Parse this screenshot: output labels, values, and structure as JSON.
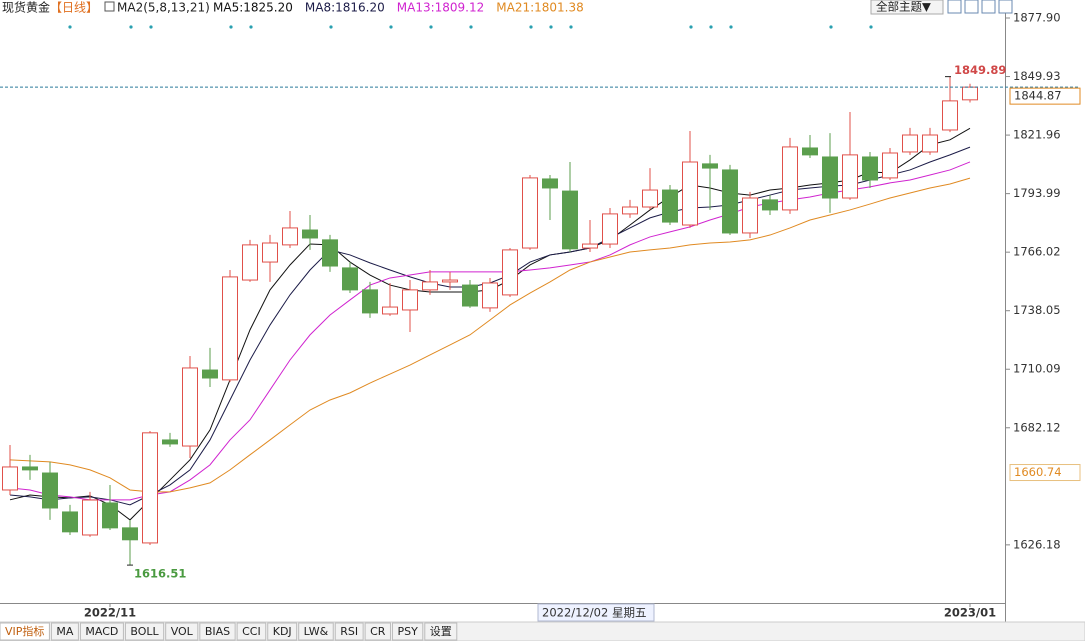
{
  "chart_data": {
    "type": "candlestick",
    "title": "现货黄金",
    "period": "【日线】",
    "indicator": "MA2(5,8,13,21)",
    "theme_button": "全部主题▼",
    "up_color": "#e0504a",
    "down_color": "#5b9e4d",
    "categories": [
      null,
      null,
      null,
      null,
      null,
      "2022/11",
      null,
      null,
      null,
      null,
      null,
      null,
      null,
      null,
      null,
      null,
      null,
      null,
      null,
      null,
      null,
      null,
      null,
      null,
      null,
      null,
      null,
      null,
      null,
      null,
      null,
      null,
      null,
      null,
      null,
      null,
      null,
      null,
      null,
      null,
      null,
      null,
      null,
      null,
      null,
      null,
      null,
      null,
      "2023/01"
    ],
    "open": [
      1652.4,
      1663.4,
      1660.5,
      1641.9,
      1630.9,
      1646.2,
      1634.3,
      1627.1,
      1676.3,
      1673.4,
      1709.7,
      1705.0,
      1752.7,
      1761.3,
      1769.5,
      1776.6,
      1771.9,
      1758.5,
      1748.0,
      1736.5,
      1738.4,
      1748.0,
      1751.8,
      1750.3,
      1739.4,
      1745.6,
      1768.0,
      1801.0,
      1795.2,
      1768.0,
      1769.9,
      1784.3,
      1787.6,
      1795.7,
      1779.0,
      1808.2,
      1805.3,
      1775.2,
      1791.0,
      1786.2,
      1815.8,
      1811.5,
      1791.9,
      1811.5,
      1801.5,
      1813.9,
      1813.9,
      1824.4,
      1838.8
    ],
    "high": [
      1673.9,
      1669.2,
      1665.8,
      1645.3,
      1651.5,
      1654.8,
      1638.1,
      1680.6,
      1679.7,
      1716.4,
      1720.3,
      1757.5,
      1771.9,
      1774.3,
      1785.7,
      1783.8,
      1774.3,
      1761.3,
      1751.8,
      1751.3,
      1752.7,
      1757.5,
      1756.6,
      1752.7,
      1753.7,
      1768.0,
      1802.9,
      1802.9,
      1809.1,
      1781.4,
      1787.1,
      1791.0,
      1806.2,
      1798.1,
      1823.9,
      1812.5,
      1807.7,
      1794.8,
      1793.3,
      1820.6,
      1822.0,
      1822.9,
      1833.0,
      1813.9,
      1815.8,
      1825.4,
      1825.4,
      1849.89,
      1846.5
    ],
    "low": [
      1650.0,
      1657.2,
      1638.1,
      1630.9,
      1630.0,
      1633.3,
      1616.51,
      1626.1,
      1673.0,
      1667.7,
      1701.6,
      1704.0,
      1751.8,
      1751.8,
      1768.0,
      1767.1,
      1756.6,
      1746.5,
      1734.6,
      1735.6,
      1727.9,
      1745.6,
      1748.0,
      1739.4,
      1737.5,
      1744.6,
      1767.1,
      1781.4,
      1766.1,
      1766.1,
      1768.0,
      1782.4,
      1786.2,
      1779.0,
      1777.6,
      1786.2,
      1774.2,
      1772.8,
      1783.8,
      1784.3,
      1811.0,
      1784.8,
      1791.0,
      1796.7,
      1800.5,
      1812.5,
      1812.5,
      1823.4,
      1837.5
    ],
    "close": [
      1663.4,
      1662.0,
      1643.8,
      1632.4,
      1647.6,
      1634.3,
      1628.6,
      1679.7,
      1674.4,
      1710.7,
      1705.9,
      1754.2,
      1769.5,
      1770.4,
      1777.6,
      1772.8,
      1759.4,
      1748.0,
      1737.0,
      1739.8,
      1748.0,
      1751.8,
      1752.7,
      1740.3,
      1751.3,
      1767.1,
      1801.5,
      1796.7,
      1767.6,
      1769.9,
      1784.3,
      1787.6,
      1795.7,
      1780.4,
      1809.1,
      1806.2,
      1775.2,
      1791.9,
      1786.2,
      1816.3,
      1812.5,
      1791.9,
      1812.5,
      1800.5,
      1813.4,
      1822.0,
      1822.0,
      1838.3,
      1844.87
    ],
    "series": [
      {
        "name": "MA5:1825.20",
        "color": "#111111",
        "values": [
          1647.7,
          1650.0,
          1649.1,
          1648.6,
          1649.6,
          1645.3,
          1638.1,
          1647.7,
          1657.2,
          1666.8,
          1681.1,
          1705.0,
          1728.9,
          1748.0,
          1759.9,
          1769.9,
          1769.5,
          1761.3,
          1755.1,
          1750.3,
          1748.0,
          1747.0,
          1747.0,
          1747.0,
          1748.0,
          1752.7,
          1759.9,
          1764.7,
          1766.1,
          1768.0,
          1771.9,
          1779.0,
          1786.2,
          1792.4,
          1798.1,
          1796.7,
          1794.3,
          1793.3,
          1795.7,
          1796.7,
          1798.1,
          1799.1,
          1800.5,
          1804.3,
          1803.9,
          1810.1,
          1817.3,
          1819.7,
          1825.2
        ]
      },
      {
        "name": "MA8:1816.20",
        "color": "#1c1c48",
        "values": [
          1650.0,
          1649.1,
          1647.7,
          1648.6,
          1649.1,
          1647.7,
          1645.3,
          1650.0,
          1654.8,
          1662.0,
          1676.3,
          1695.4,
          1714.5,
          1731.2,
          1745.6,
          1757.5,
          1767.1,
          1764.7,
          1760.9,
          1757.5,
          1754.2,
          1751.3,
          1749.4,
          1749.4,
          1751.3,
          1755.1,
          1761.3,
          1764.7,
          1766.1,
          1768.0,
          1772.8,
          1777.6,
          1782.4,
          1785.2,
          1787.1,
          1787.6,
          1788.6,
          1791.0,
          1793.3,
          1795.7,
          1796.7,
          1797.6,
          1798.1,
          1800.5,
          1802.9,
          1805.3,
          1809.1,
          1812.5,
          1816.2
        ]
      },
      {
        "name": "MA13:1809.12",
        "color": "#d024d0",
        "values": [
          1653.4,
          1652.4,
          1650.0,
          1649.1,
          1647.7,
          1647.7,
          1647.7,
          1650.0,
          1651.5,
          1657.2,
          1664.4,
          1676.3,
          1685.9,
          1700.2,
          1714.5,
          1726.5,
          1736.0,
          1743.2,
          1750.3,
          1753.7,
          1755.1,
          1756.6,
          1756.6,
          1756.6,
          1756.6,
          1756.6,
          1757.5,
          1758.5,
          1759.9,
          1761.3,
          1764.7,
          1769.5,
          1773.3,
          1775.7,
          1778.1,
          1781.4,
          1784.3,
          1787.6,
          1789.5,
          1791.0,
          1792.4,
          1794.3,
          1795.7,
          1797.2,
          1799.1,
          1800.5,
          1802.9,
          1805.3,
          1809.12
        ]
      },
      {
        "name": "MA21:1801.38",
        "color": "#e08a22",
        "values": [
          1666.8,
          1666.3,
          1665.8,
          1664.4,
          1662.0,
          1658.2,
          1652.4,
          1651.5,
          1651.5,
          1653.4,
          1655.8,
          1662.0,
          1669.2,
          1676.3,
          1683.5,
          1690.6,
          1695.4,
          1698.8,
          1703.5,
          1707.8,
          1712.1,
          1716.9,
          1721.7,
          1726.5,
          1733.6,
          1740.8,
          1746.5,
          1751.8,
          1757.5,
          1761.3,
          1763.7,
          1766.1,
          1767.1,
          1768.0,
          1769.5,
          1770.4,
          1770.9,
          1771.9,
          1774.2,
          1777.6,
          1781.4,
          1783.8,
          1786.2,
          1789.0,
          1791.9,
          1794.3,
          1796.7,
          1798.6,
          1801.38
        ]
      }
    ],
    "ylim": [
      1598.4,
      1886.5
    ],
    "yticks": [
      {
        "value": 1877.9,
        "label": "1877.90"
      },
      1849.93,
      1821.96,
      1793.99,
      1766.02,
      1738.05,
      1710.09,
      1682.12,
      1626.18
    ],
    "high_label": 1849.89,
    "low_label": 1616.51,
    "current_price": 1844.87,
    "level_label": 1660.74,
    "crosshair_label": "2022/12/02 星期五",
    "tabs": [
      "VIP指标",
      "MA",
      "MACD",
      "BOLL",
      "VOL",
      "BIAS",
      "CCI",
      "KDJ",
      "LW&",
      "RSI",
      "CR",
      "PSY",
      "设置"
    ]
  }
}
